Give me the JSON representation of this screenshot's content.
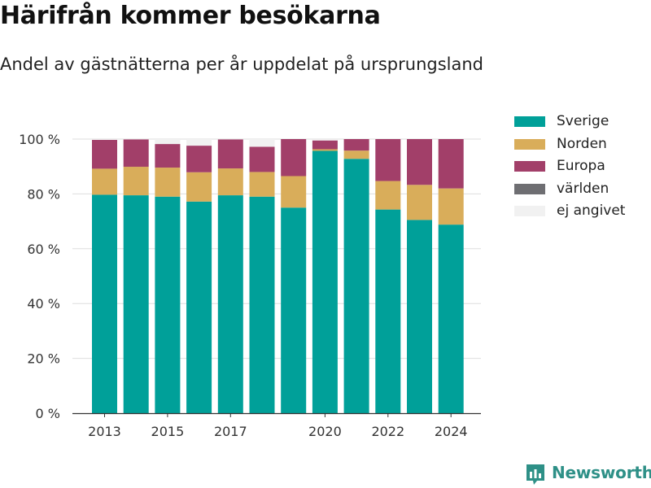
{
  "title": "Härifrån kommer besökarna",
  "subtitle": "Andel av gästnätterna per år uppdelat på ursprungsland",
  "brand": "Newsworthy",
  "legend": [
    {
      "label": "Sverige",
      "color": "#00a099"
    },
    {
      "label": "Norden",
      "color": "#d9ad5a"
    },
    {
      "label": "Europa",
      "color": "#a23f69"
    },
    {
      "label": "världen",
      "color": "#6e6e72"
    },
    {
      "label": "ej angivet",
      "color": "#f1f1f1"
    }
  ],
  "chart_data": {
    "type": "bar",
    "stacked": true,
    "x": [
      2013,
      2014,
      2015,
      2016,
      2017,
      2018,
      2019,
      2020,
      2021,
      2022,
      2023,
      2024
    ],
    "x_tick_labels": [
      "2013",
      "2015",
      "2017",
      "2020",
      "2022",
      "2024"
    ],
    "y_tick_labels": [
      "0 %",
      "20 %",
      "40 %",
      "60 %",
      "80 %",
      "100 %"
    ],
    "ylim": [
      0,
      100
    ],
    "grid": true,
    "legend_position": "right",
    "series": [
      {
        "name": "Sverige",
        "color": "#00a099",
        "values": [
          79.7,
          79.5,
          79.0,
          77.2,
          79.5,
          79.0,
          75.0,
          95.7,
          92.8,
          74.3,
          70.5,
          68.8
        ]
      },
      {
        "name": "Norden",
        "color": "#d9ad5a",
        "values": [
          9.5,
          10.4,
          10.6,
          10.7,
          9.8,
          9.0,
          11.5,
          0.6,
          3.0,
          10.4,
          12.8,
          13.2
        ]
      },
      {
        "name": "Europa",
        "color": "#a23f69",
        "values": [
          10.5,
          10.0,
          8.6,
          9.7,
          10.6,
          9.2,
          13.5,
          3.2,
          4.2,
          15.3,
          16.7,
          18.0
        ]
      },
      {
        "name": "världen",
        "color": "#6e6e72",
        "values": [
          0,
          0,
          0,
          0,
          0,
          0,
          0,
          0,
          0,
          0,
          0,
          0
        ]
      },
      {
        "name": "ej angivet",
        "color": "#f1f1f1",
        "values": [
          0.3,
          0.1,
          1.8,
          2.4,
          0.1,
          2.8,
          0,
          0.5,
          0,
          0,
          0,
          0
        ]
      }
    ]
  }
}
